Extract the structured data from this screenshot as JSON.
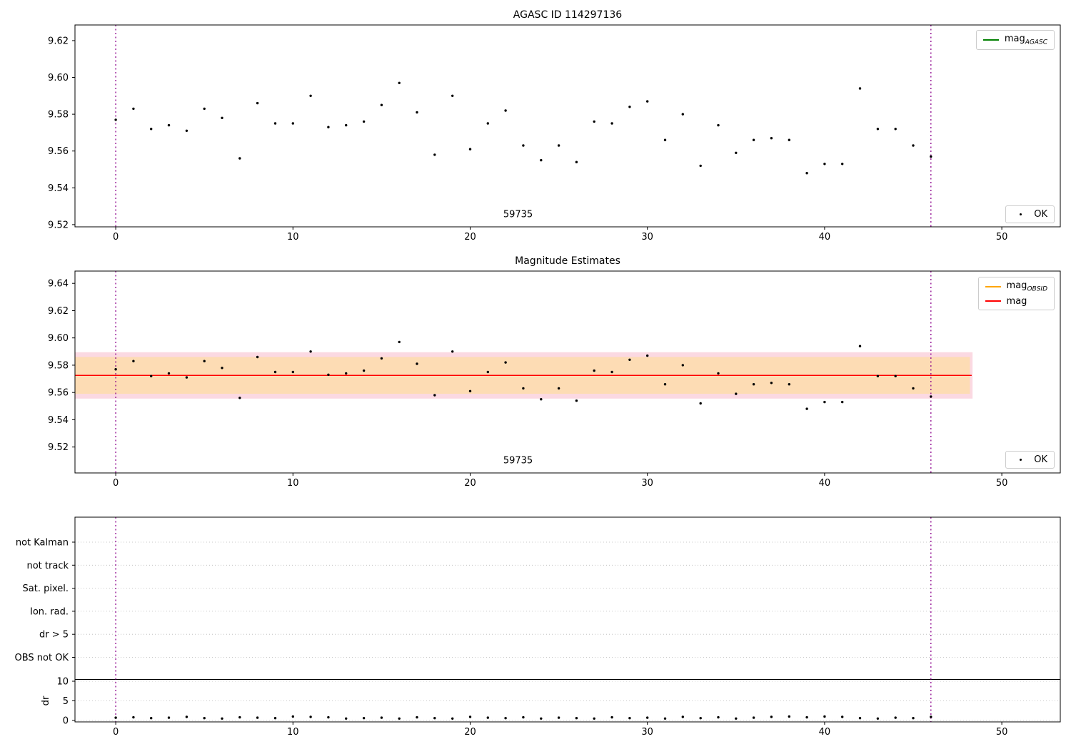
{
  "figure": {
    "colors": {
      "vline": "#8B008B",
      "point": "#000000"
    }
  },
  "chart_data": [
    {
      "type": "scatter",
      "title": "AGASC ID 114297136",
      "xlim": [
        -2.3,
        53.3
      ],
      "ylim": [
        9.5188,
        9.6285
      ],
      "xticks": [
        0,
        10,
        20,
        30,
        40,
        50
      ],
      "yticks": [
        9.52,
        9.54,
        9.56,
        9.58,
        9.6,
        9.62
      ],
      "vlines": [
        0,
        46
      ],
      "annotation": {
        "text": "59735",
        "x": 22.7,
        "y": 9.524
      },
      "legend": [
        {
          "text": "mag",
          "sub": "AGASC",
          "color": "#008000",
          "type": "line"
        }
      ],
      "legend_ok": {
        "text": "OK"
      },
      "x": [
        0,
        1,
        2,
        3,
        4,
        5,
        6,
        7,
        8,
        9,
        10,
        11,
        12,
        13,
        14,
        15,
        16,
        17,
        18,
        19,
        20,
        21,
        22,
        23,
        24,
        25,
        26,
        27,
        28,
        29,
        30,
        31,
        32,
        33,
        34,
        35,
        36,
        37,
        38,
        39,
        40,
        41,
        42,
        43,
        44,
        45,
        46
      ],
      "y": [
        9.577,
        9.583,
        9.572,
        9.574,
        9.571,
        9.583,
        9.578,
        9.556,
        9.586,
        9.575,
        9.575,
        9.59,
        9.573,
        9.574,
        9.576,
        9.585,
        9.597,
        9.581,
        9.558,
        9.59,
        9.561,
        9.575,
        9.582,
        9.563,
        9.555,
        9.563,
        9.554,
        9.576,
        9.575,
        9.584,
        9.587,
        9.566,
        9.58,
        9.552,
        9.574,
        9.559,
        9.566,
        9.567,
        9.566,
        9.548,
        9.553,
        9.553,
        9.594,
        9.572,
        9.572,
        9.563,
        9.557
      ]
    },
    {
      "type": "scatter",
      "title": "Magnitude Estimates",
      "xlim": [
        -2.3,
        53.3
      ],
      "ylim": [
        9.501,
        9.649
      ],
      "xticks": [
        0,
        10,
        20,
        30,
        40,
        50
      ],
      "yticks": [
        9.52,
        9.54,
        9.56,
        9.58,
        9.6,
        9.62,
        9.64
      ],
      "vlines": [
        0,
        46
      ],
      "bands": [
        {
          "x0": -2.3,
          "x1": 48.35,
          "y0": 9.5555,
          "y1": 9.5895,
          "color": "#fbd9e2"
        },
        {
          "x0": -2.3,
          "x1": 48.2,
          "y0": 9.559,
          "y1": 9.586,
          "color": "#fddcb4"
        }
      ],
      "hline": {
        "y": 9.5725,
        "x0": -2.3,
        "x1": 48.3,
        "color": "#ff0000"
      },
      "annotation": {
        "text": "59735",
        "x": 22.7,
        "y": 9.508
      },
      "legend": [
        {
          "text": "mag",
          "sub": "OBSID",
          "color": "#FFA500",
          "type": "line"
        },
        {
          "text": "mag",
          "sub": "",
          "color": "#ff0000",
          "type": "line"
        }
      ],
      "legend_ok": {
        "text": "OK"
      },
      "x": [
        0,
        1,
        2,
        3,
        4,
        5,
        6,
        7,
        8,
        9,
        10,
        11,
        12,
        13,
        14,
        15,
        16,
        17,
        18,
        19,
        20,
        21,
        22,
        23,
        24,
        25,
        26,
        27,
        28,
        29,
        30,
        31,
        32,
        33,
        34,
        35,
        36,
        37,
        38,
        39,
        40,
        41,
        42,
        43,
        44,
        45,
        46
      ],
      "y": [
        9.577,
        9.583,
        9.572,
        9.574,
        9.571,
        9.583,
        9.578,
        9.556,
        9.586,
        9.575,
        9.575,
        9.59,
        9.573,
        9.574,
        9.576,
        9.585,
        9.597,
        9.581,
        9.558,
        9.59,
        9.561,
        9.575,
        9.582,
        9.563,
        9.555,
        9.563,
        9.554,
        9.576,
        9.575,
        9.584,
        9.587,
        9.566,
        9.58,
        9.552,
        9.574,
        9.559,
        9.566,
        9.567,
        9.566,
        9.548,
        9.553,
        9.553,
        9.594,
        9.572,
        9.572,
        9.563,
        9.557
      ]
    },
    {
      "type": "flags",
      "categories": [
        "not Kalman",
        "not track",
        "Sat. pixel.",
        "Ion. rad.",
        "dr > 5",
        "OBS not OK"
      ],
      "ylabel": "dr",
      "dr_ticks": [
        0,
        5,
        10
      ],
      "xticks": [
        0,
        10,
        20,
        30,
        40,
        50
      ],
      "xlim": [
        -2.3,
        53.3
      ],
      "vlines": [
        0,
        46
      ],
      "x": [
        0,
        1,
        2,
        3,
        4,
        5,
        6,
        7,
        8,
        9,
        10,
        11,
        12,
        13,
        14,
        15,
        16,
        17,
        18,
        19,
        20,
        21,
        22,
        23,
        24,
        25,
        26,
        27,
        28,
        29,
        30,
        31,
        32,
        33,
        34,
        35,
        36,
        37,
        38,
        39,
        40,
        41,
        42,
        43,
        44,
        45,
        46
      ],
      "dr": [
        0.7,
        0.8,
        0.6,
        0.7,
        0.9,
        0.6,
        0.5,
        0.8,
        0.7,
        0.6,
        1.0,
        0.9,
        0.8,
        0.5,
        0.6,
        0.7,
        0.5,
        0.8,
        0.6,
        0.5,
        0.9,
        0.7,
        0.6,
        0.8,
        0.5,
        0.7,
        0.6,
        0.5,
        0.8,
        0.6,
        0.7,
        0.5,
        0.9,
        0.6,
        0.8,
        0.5,
        0.7,
        0.9,
        1.0,
        0.8,
        1.0,
        0.9,
        0.6,
        0.5,
        0.7,
        0.6,
        0.9
      ]
    }
  ]
}
